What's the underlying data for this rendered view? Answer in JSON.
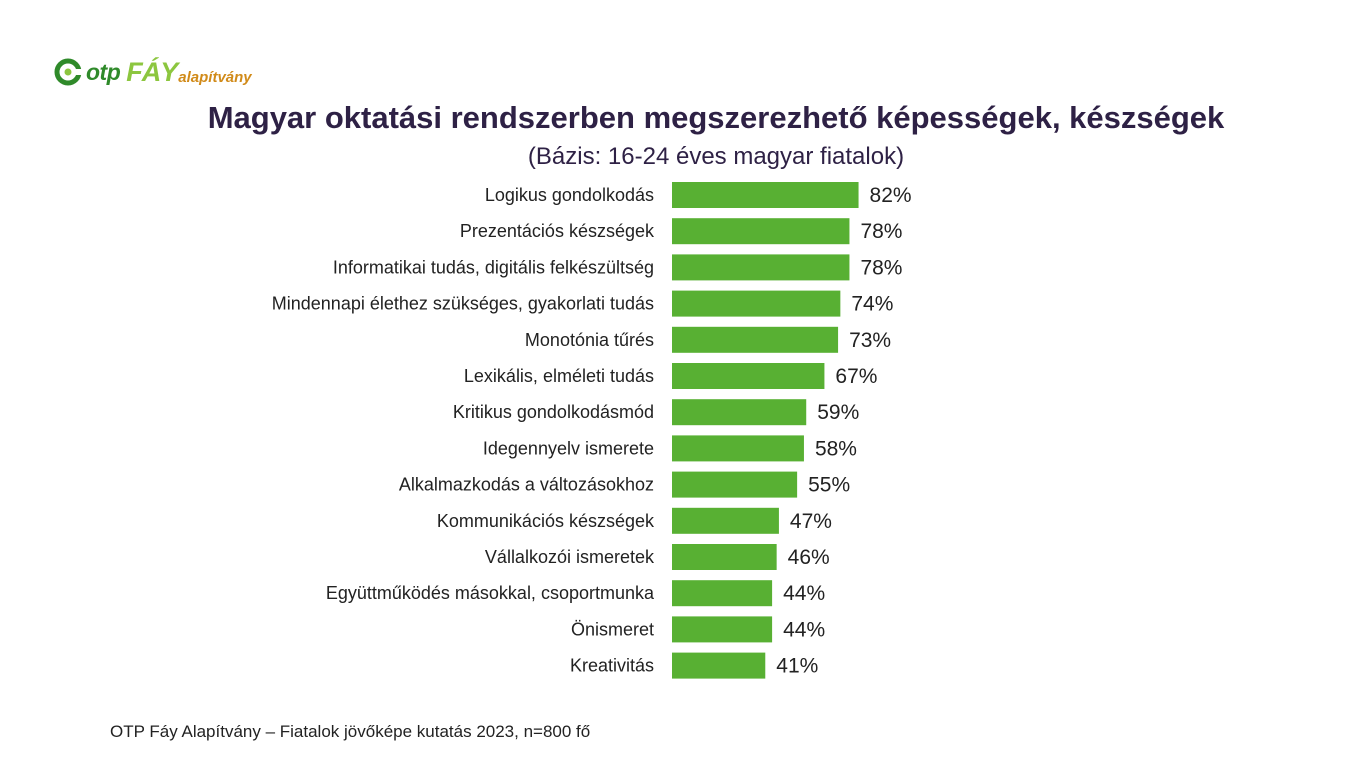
{
  "logo": {
    "brand": "otp",
    "name": "FÁY",
    "sub": "alapítvány"
  },
  "footer": "OTP Fáy Alapítvány – Fiatalok jövőképe kutatás 2023, n=800 fő",
  "colors": {
    "bar": "#58b033",
    "text": "#2e2145"
  },
  "chart_data": {
    "type": "bar",
    "orientation": "horizontal",
    "title": "Magyar oktatási rendszerben megszerezhető képességek, készségek",
    "subtitle": "(Bázis: 16-24 éves magyar fiatalok)",
    "unit": "%",
    "xlim": [
      0,
      100
    ],
    "grid": false,
    "categories": [
      "Logikus gondolkodás",
      "Prezentációs készségek",
      "Informatikai tudás, digitális felkészültség",
      "Mindennapi élethez szükséges, gyakorlati tudás",
      "Monotónia tűrés",
      "Lexikális, elméleti tudás",
      "Kritikus gondolkodásmód",
      "Idegennyelv ismerete",
      "Alkalmazkodás a változásokhoz",
      "Kommunikációs készségek",
      "Vállalkozói ismeretek",
      "Együttműködés másokkal, csoportmunka",
      "Önismeret",
      "Kreativitás"
    ],
    "values": [
      82,
      78,
      78,
      74,
      73,
      67,
      59,
      58,
      55,
      47,
      46,
      44,
      44,
      41
    ]
  }
}
